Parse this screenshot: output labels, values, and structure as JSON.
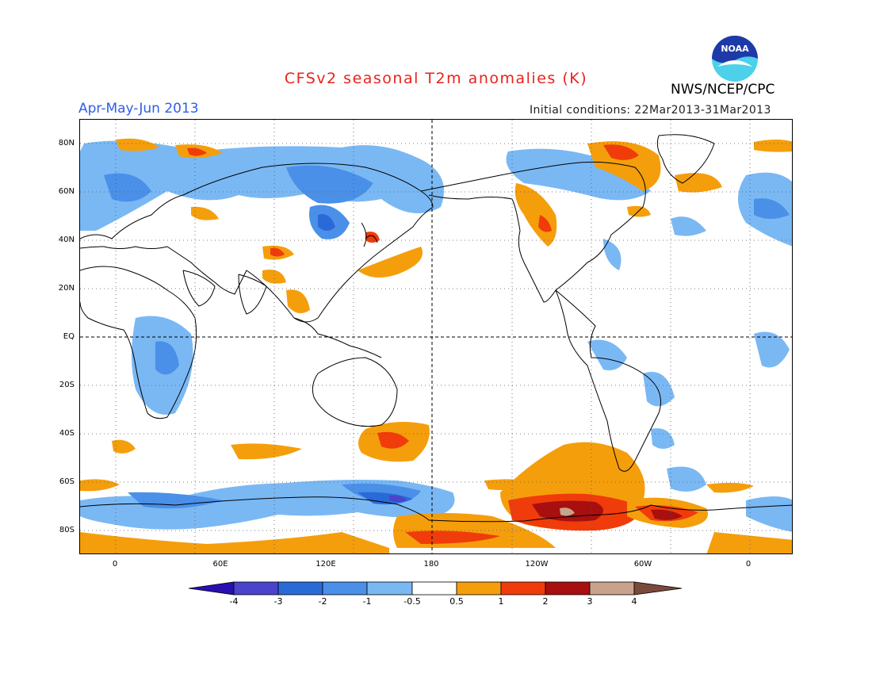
{
  "header": {
    "title": "CFSv2 seasonal T2m anomalies (K)",
    "season": "Apr-May-Jun 2013",
    "initial_conditions": "Initial conditions: 22Mar2013-31Mar2013",
    "agency": "NWS/NCEP/CPC",
    "logo_text": "NOAA"
  },
  "colors": {
    "title": "#e8231e",
    "season": "#2e5ee6",
    "warm_05_1": "#f59e0b",
    "warm_1_2": "#f03c0a",
    "warm_2_3": "#a80f0f",
    "warm_3_4": "#c9a28c",
    "cool_05_1": "#7ab8f4",
    "cool_1_2": "#4a90e8",
    "cool_2_3": "#2a6ad8",
    "cool_3_4": "#4a44cc"
  },
  "map": {
    "y_labels": [
      "80N",
      "60N",
      "40N",
      "20N",
      "EQ",
      "20S",
      "40S",
      "60S",
      "80S"
    ],
    "x_labels": [
      "0",
      "60E",
      "120E",
      "180",
      "120W",
      "60W",
      "0"
    ]
  },
  "colorbar": {
    "labels": [
      "-4",
      "-3",
      "-2",
      "-1",
      "-0.5",
      "0.5",
      "1",
      "2",
      "3",
      "4"
    ],
    "bins": [
      "#2810b0",
      "#4a44cc",
      "#2a6ad8",
      "#4a90e8",
      "#7ab8f4",
      "#ffffff",
      "#f59e0b",
      "#f03c0a",
      "#a80f0f",
      "#c9a28c",
      "#7a4a3a"
    ]
  }
}
